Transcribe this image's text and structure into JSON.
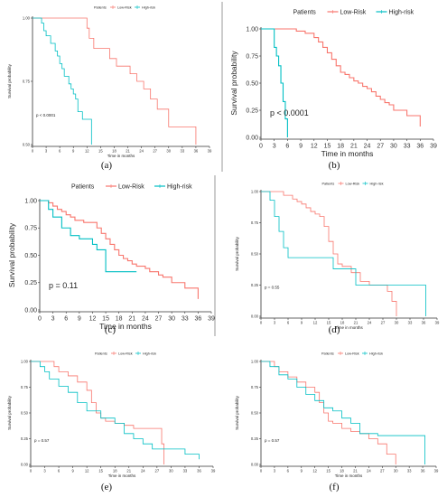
{
  "charts": [
    {
      "panel_label": "(a)",
      "legend_title": "Patients",
      "legend_items": [
        "Low-Risk",
        "High-risk"
      ],
      "ylabel": "Survival probability",
      "xlabel": "Time in months",
      "pvalue": "p < 0.0001",
      "ytick_labels": [
        "0.50",
        "0.75",
        "1.00"
      ],
      "xtick_labels": [
        "0",
        "3",
        "6",
        "9",
        "12",
        "15",
        "18",
        "21",
        "24",
        "27",
        "30",
        "33",
        "36",
        "39"
      ]
    },
    {
      "panel_label": "(b)",
      "legend_title": "Patients",
      "legend_items": [
        "Low-Risk",
        "High-risk"
      ],
      "ylabel": "Survival probability",
      "xlabel": "Time in months",
      "pvalue": "p < 0.0001",
      "ytick_labels": [
        "0.00",
        "0.25",
        "0.50",
        "0.75",
        "1.00"
      ],
      "xtick_labels": [
        "0",
        "3",
        "6",
        "9",
        "12",
        "15",
        "18",
        "21",
        "24",
        "27",
        "30",
        "33",
        "36",
        "39"
      ]
    },
    {
      "panel_label": "(c)",
      "legend_title": "Patients",
      "legend_items": [
        "Low-Risk",
        "High-risk"
      ],
      "ylabel": "Survival probability",
      "xlabel": "Time in months",
      "pvalue": "p = 0.11",
      "ytick_labels": [
        "0.00",
        "0.25",
        "0.50",
        "0.75",
        "1.00"
      ],
      "xtick_labels": [
        "0",
        "3",
        "6",
        "9",
        "12",
        "15",
        "18",
        "21",
        "24",
        "27",
        "30",
        "33",
        "36",
        "39"
      ]
    },
    {
      "panel_label": "(d)",
      "legend_title": "Patients",
      "legend_items": [
        "Low-Risk",
        "High-risk"
      ],
      "ylabel": "Survival probability",
      "xlabel": "Time in months",
      "pvalue": "p = 0.55",
      "ytick_labels": [
        "0.00",
        "0.25",
        "0.50",
        "0.75",
        "1.00"
      ],
      "xtick_labels": [
        "0",
        "3",
        "6",
        "9",
        "12",
        "15",
        "18",
        "21",
        "24",
        "27",
        "30",
        "33",
        "36",
        "39"
      ]
    },
    {
      "panel_label": "(e)",
      "legend_title": "Patients",
      "legend_items": [
        "Low-Risk",
        "High-risk"
      ],
      "ylabel": "Survival probability",
      "xlabel": "Time in months",
      "pvalue": "p = 0.57",
      "ytick_labels": [
        "0.00",
        "0.25",
        "0.50",
        "0.75",
        "1.00"
      ],
      "xtick_labels": [
        "0",
        "3",
        "6",
        "9",
        "12",
        "15",
        "18",
        "21",
        "24",
        "27",
        "30",
        "33",
        "36",
        "39"
      ]
    },
    {
      "panel_label": "(f)",
      "legend_title": "Patients",
      "legend_items": [
        "Low-Risk",
        "High-risk"
      ],
      "ylabel": "Survival probability",
      "xlabel": "Time in months",
      "pvalue": "p = 0.57",
      "ytick_labels": [
        "0.00",
        "0.25",
        "0.50",
        "0.75",
        "1.00"
      ],
      "xtick_labels": [
        "0",
        "3",
        "6",
        "9",
        "12",
        "15",
        "18",
        "21",
        "24",
        "27",
        "30",
        "33",
        "36",
        "39"
      ]
    }
  ],
  "colors": {
    "low_risk": "#F8766D",
    "high_risk": "#00BFC4",
    "axis": "#333333"
  },
  "chart_data": [
    {
      "type": "line",
      "panel": "(a)",
      "xlim": [
        0,
        39
      ],
      "ylim": [
        0.5,
        1.0
      ],
      "grid": false,
      "legend_position": "top",
      "series": [
        {
          "name": "Low-Risk",
          "x": [
            0,
            11,
            12,
            12.5,
            13.5,
            14.5,
            16,
            17,
            18.5,
            20,
            21.5,
            23,
            24.5,
            26,
            27.5,
            28.5,
            30,
            36
          ],
          "y": [
            1.0,
            1.0,
            0.96,
            0.92,
            0.88,
            0.88,
            0.88,
            0.84,
            0.81,
            0.81,
            0.78,
            0.75,
            0.72,
            0.68,
            0.64,
            0.64,
            0.57,
            0.5
          ]
        },
        {
          "name": "High-risk",
          "x": [
            0,
            1,
            2,
            2.5,
            3,
            4,
            5,
            5.5,
            6,
            6.5,
            7,
            8,
            8.5,
            9,
            9.5,
            10,
            11,
            12,
            13
          ],
          "y": [
            1.0,
            1.0,
            0.98,
            0.95,
            0.93,
            0.9,
            0.87,
            0.85,
            0.82,
            0.8,
            0.77,
            0.74,
            0.72,
            0.7,
            0.68,
            0.63,
            0.6,
            0.6,
            0.5
          ]
        }
      ]
    },
    {
      "type": "line",
      "panel": "(b)",
      "xlim": [
        0,
        39
      ],
      "ylim": [
        0,
        1.0
      ],
      "grid": false,
      "legend_position": "top",
      "series": [
        {
          "name": "Low-Risk",
          "x": [
            0,
            6,
            8,
            10,
            12,
            13,
            14,
            15,
            16,
            17,
            18,
            19,
            20,
            21,
            22,
            23,
            24,
            25,
            26,
            27,
            28,
            29,
            30,
            33,
            36
          ],
          "y": [
            1.0,
            1.0,
            0.98,
            0.96,
            0.92,
            0.88,
            0.83,
            0.78,
            0.72,
            0.66,
            0.6,
            0.58,
            0.55,
            0.52,
            0.5,
            0.47,
            0.45,
            0.42,
            0.38,
            0.35,
            0.32,
            0.3,
            0.25,
            0.2,
            0.1
          ]
        },
        {
          "name": "High-risk",
          "x": [
            0,
            2,
            3,
            3.5,
            4,
            4.5,
            5,
            5.5,
            6
          ],
          "y": [
            1.0,
            1.0,
            0.83,
            0.75,
            0.66,
            0.5,
            0.33,
            0.17,
            0.0
          ]
        }
      ]
    },
    {
      "type": "line",
      "panel": "(c)",
      "xlim": [
        0,
        39
      ],
      "ylim": [
        0,
        1.0
      ],
      "grid": false,
      "legend_position": "top",
      "series": [
        {
          "name": "Low-Risk",
          "x": [
            0,
            2,
            3,
            4,
            5,
            6,
            7,
            8,
            10,
            12,
            13,
            14,
            15,
            16,
            17,
            18,
            19,
            20,
            21,
            22,
            24,
            25,
            27,
            28,
            30,
            33,
            36
          ],
          "y": [
            1.0,
            0.98,
            0.95,
            0.92,
            0.9,
            0.87,
            0.85,
            0.82,
            0.8,
            0.8,
            0.75,
            0.7,
            0.65,
            0.6,
            0.55,
            0.5,
            0.47,
            0.45,
            0.42,
            0.4,
            0.38,
            0.35,
            0.32,
            0.3,
            0.25,
            0.2,
            0.1
          ]
        },
        {
          "name": "High-risk",
          "x": [
            0,
            2,
            3,
            5,
            7,
            9,
            12,
            13,
            15,
            22
          ],
          "y": [
            1.0,
            0.92,
            0.85,
            0.75,
            0.68,
            0.65,
            0.6,
            0.55,
            0.35,
            0.35
          ]
        }
      ]
    },
    {
      "type": "line",
      "panel": "(d)",
      "xlim": [
        0,
        39
      ],
      "ylim": [
        0,
        1.0
      ],
      "grid": false,
      "legend_position": "top",
      "series": [
        {
          "name": "Low-Risk",
          "x": [
            0,
            3,
            5,
            7,
            8,
            9,
            10,
            11,
            12,
            13,
            14,
            15,
            16,
            17,
            18,
            20,
            22,
            24,
            26,
            27,
            28,
            29,
            30
          ],
          "y": [
            1.0,
            1.0,
            0.97,
            0.94,
            0.92,
            0.9,
            0.87,
            0.84,
            0.82,
            0.8,
            0.72,
            0.6,
            0.5,
            0.42,
            0.4,
            0.35,
            0.28,
            0.25,
            0.25,
            0.25,
            0.2,
            0.12,
            0.0
          ]
        },
        {
          "name": "High-risk",
          "x": [
            0,
            2,
            3,
            4,
            5,
            6,
            16,
            21,
            36.5
          ],
          "y": [
            1.0,
            0.93,
            0.8,
            0.68,
            0.55,
            0.47,
            0.38,
            0.25,
            0.0
          ]
        }
      ]
    },
    {
      "type": "line",
      "panel": "(e)",
      "xlim": [
        0,
        39
      ],
      "ylim": [
        0,
        1.0
      ],
      "grid": false,
      "legend_position": "top",
      "series": [
        {
          "name": "Low-Risk",
          "x": [
            0,
            3,
            5,
            6,
            8,
            10,
            12,
            13,
            14,
            15,
            16,
            18,
            20,
            22,
            26,
            27,
            28,
            28.5
          ],
          "y": [
            1.0,
            1.0,
            0.95,
            0.9,
            0.86,
            0.8,
            0.72,
            0.6,
            0.5,
            0.45,
            0.42,
            0.4,
            0.38,
            0.35,
            0.35,
            0.35,
            0.2,
            0.0
          ]
        },
        {
          "name": "High-risk",
          "x": [
            0,
            2,
            3,
            4,
            6,
            8,
            10,
            12,
            15,
            18,
            20,
            22,
            24,
            26,
            30,
            33,
            36
          ],
          "y": [
            1.0,
            0.95,
            0.9,
            0.83,
            0.76,
            0.7,
            0.6,
            0.52,
            0.45,
            0.4,
            0.3,
            0.25,
            0.2,
            0.15,
            0.15,
            0.1,
            0.05
          ]
        }
      ]
    },
    {
      "type": "line",
      "panel": "(f)",
      "xlim": [
        0,
        39
      ],
      "ylim": [
        0,
        1.0
      ],
      "grid": false,
      "legend_position": "top",
      "series": [
        {
          "name": "Low-Risk",
          "x": [
            0,
            3,
            4,
            6,
            8,
            10,
            12,
            13,
            14,
            15,
            16,
            18,
            20,
            22,
            24,
            26,
            28,
            30
          ],
          "y": [
            1.0,
            0.95,
            0.9,
            0.85,
            0.8,
            0.75,
            0.7,
            0.6,
            0.5,
            0.42,
            0.4,
            0.35,
            0.32,
            0.3,
            0.25,
            0.2,
            0.1,
            0.0
          ]
        },
        {
          "name": "High-risk",
          "x": [
            0,
            2,
            4,
            6,
            8,
            10,
            12,
            14,
            16,
            18,
            20,
            22,
            26,
            36,
            36.5
          ],
          "y": [
            1.0,
            0.95,
            0.87,
            0.83,
            0.75,
            0.68,
            0.62,
            0.55,
            0.52,
            0.45,
            0.4,
            0.3,
            0.28,
            0.28,
            0.0
          ]
        }
      ]
    }
  ]
}
